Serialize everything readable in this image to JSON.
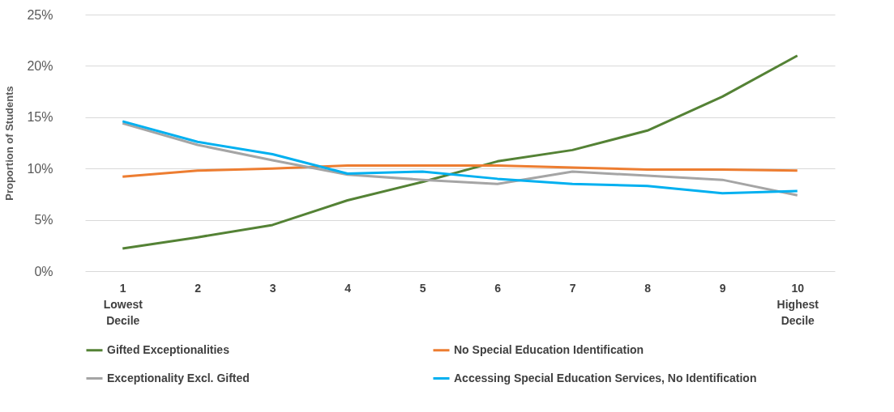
{
  "chart_data": {
    "type": "line",
    "ylabel": "Proportion of Students",
    "categories": [
      "1\nLowest\nDecile",
      "2",
      "3",
      "4",
      "5",
      "6",
      "7",
      "8",
      "9",
      "10\nHighest\nDecile"
    ],
    "ylim": [
      0,
      25
    ],
    "yticks": [
      {
        "value": 0,
        "label": "0%"
      },
      {
        "value": 5,
        "label": "5%"
      },
      {
        "value": 10,
        "label": "10%"
      },
      {
        "value": 15,
        "label": "15%"
      },
      {
        "value": 20,
        "label": "20%"
      },
      {
        "value": 25,
        "label": "25%"
      }
    ],
    "grid": "y",
    "legend": "bottom",
    "marker": "none",
    "line_style": "solid",
    "series": [
      {
        "name": "Gifted Exceptionalities",
        "color": "#548235",
        "values": [
          2.2,
          3.3,
          4.5,
          6.9,
          8.7,
          10.7,
          11.8,
          13.7,
          17.0,
          21.0
        ]
      },
      {
        "name": "No Special Education Identification",
        "color": "#ed7d31",
        "values": [
          9.2,
          9.8,
          10.0,
          10.3,
          10.3,
          10.3,
          10.1,
          9.9,
          9.9,
          9.8
        ]
      },
      {
        "name": "Exceptionality Excl. Gifted",
        "color": "#a5a5a5",
        "values": [
          14.4,
          12.3,
          10.8,
          9.4,
          8.9,
          8.5,
          9.7,
          9.3,
          8.9,
          7.4
        ]
      },
      {
        "name": "Accessing Special Education Services, No Identification",
        "color": "#00b0f0",
        "values": [
          14.6,
          12.6,
          11.4,
          9.5,
          9.7,
          9.0,
          8.5,
          8.3,
          7.6,
          7.8
        ]
      }
    ]
  }
}
